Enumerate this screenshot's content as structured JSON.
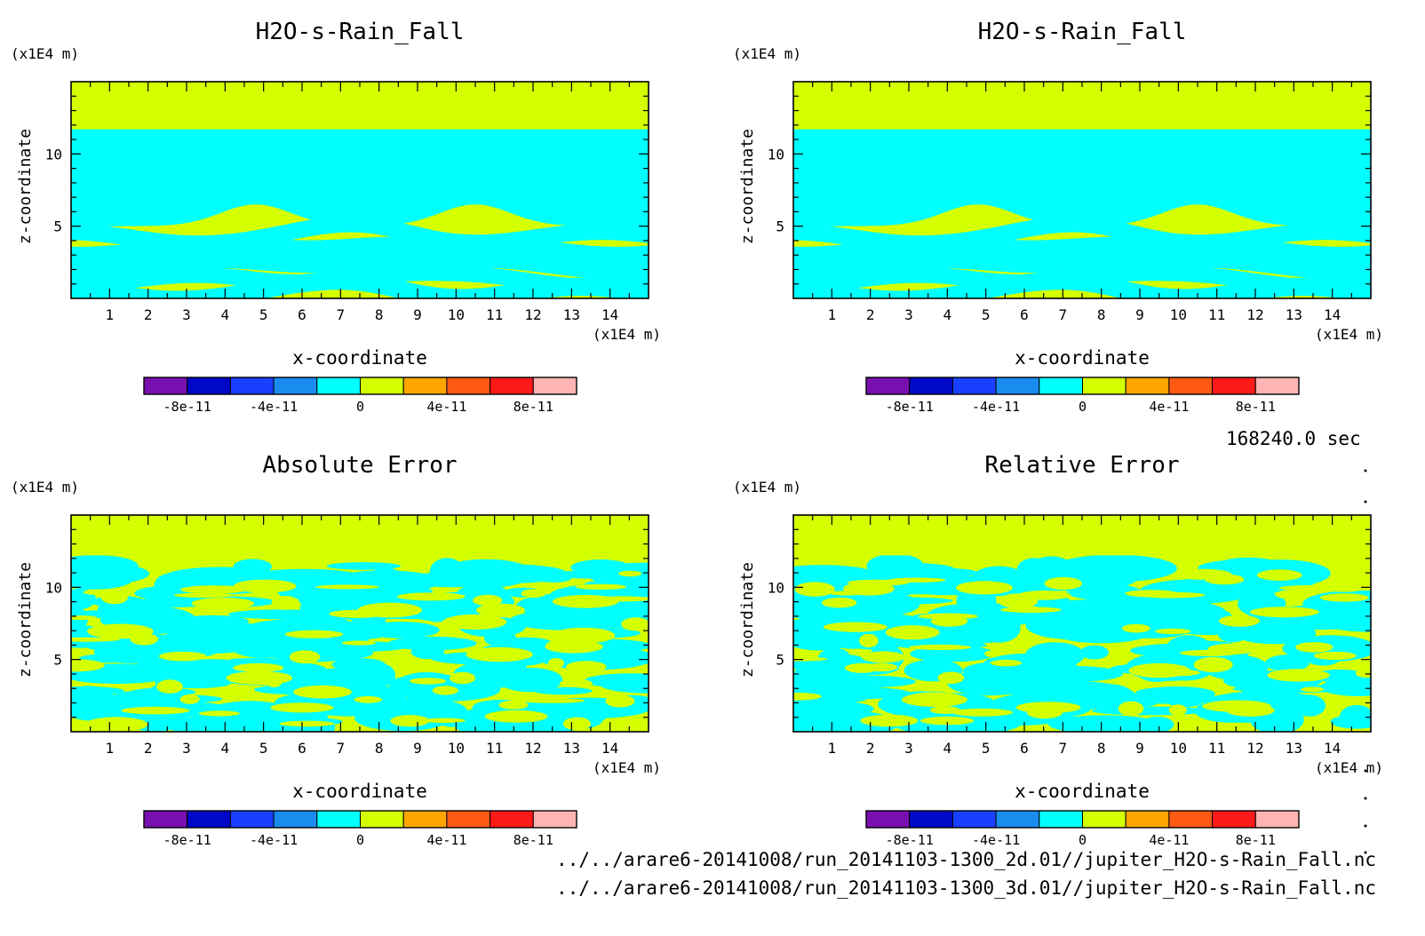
{
  "figure": {
    "time_label": "168240.0 sec",
    "file_paths": [
      "../../arare6-20141008/run_20141103-1300_2d.01//jupiter_H2O-s-Rain_Fall.nc",
      "../../arare6-20141008/run_20141103-1300_3d.01//jupiter_H2O-s-Rain_Fall.nc"
    ],
    "colors": {
      "levels": [
        "#7a0fb0",
        "#0008c8",
        "#1a40ff",
        "#1a8cf0",
        "#00ffff",
        "#d4ff00",
        "#ffa500",
        "#ff5a14",
        "#ff1a1a",
        "#ffb4b4"
      ],
      "positive_small": "#d4ff00",
      "zero_band": "#00ffff"
    }
  },
  "chart_data": [
    {
      "type": "heatmap",
      "title": "H2O-s-Rain_Fall",
      "xlabel": "x-coordinate",
      "ylabel": "z-coordinate",
      "x_unit_label": "(x1E4 m)",
      "y_unit_label": "(x1E4 m)",
      "xlim": [
        0,
        15
      ],
      "ylim": [
        0,
        15
      ],
      "x_ticks": [
        "1",
        "2",
        "3",
        "4",
        "5",
        "6",
        "7",
        "8",
        "9",
        "10",
        "11",
        "12",
        "13",
        "14"
      ],
      "y_ticks": [
        "5",
        "10"
      ],
      "colorbar_ticks": [
        "-8e-11",
        "-4e-11",
        "0",
        "4e-11",
        "8e-11"
      ],
      "colorbar_range": [
        -1e-10,
        1e-10
      ],
      "field_pattern": "structured",
      "seed": 11
    },
    {
      "type": "heatmap",
      "title": "H2O-s-Rain_Fall",
      "xlabel": "x-coordinate",
      "ylabel": "z-coordinate",
      "x_unit_label": "(x1E4 m)",
      "y_unit_label": "(x1E4 m)",
      "xlim": [
        0,
        15
      ],
      "ylim": [
        0,
        15
      ],
      "x_ticks": [
        "1",
        "2",
        "3",
        "4",
        "5",
        "6",
        "7",
        "8",
        "9",
        "10",
        "11",
        "12",
        "13",
        "14"
      ],
      "y_ticks": [
        "5",
        "10"
      ],
      "colorbar_ticks": [
        "-8e-11",
        "-4e-11",
        "0",
        "4e-11",
        "8e-11"
      ],
      "colorbar_range": [
        -1e-10,
        1e-10
      ],
      "field_pattern": "structured",
      "seed": 11
    },
    {
      "type": "heatmap",
      "title": "Absolute Error",
      "xlabel": "x-coordinate",
      "ylabel": "z-coordinate",
      "x_unit_label": "(x1E4 m)",
      "y_unit_label": "(x1E4 m)",
      "xlim": [
        0,
        15
      ],
      "ylim": [
        0,
        15
      ],
      "x_ticks": [
        "1",
        "2",
        "3",
        "4",
        "5",
        "6",
        "7",
        "8",
        "9",
        "10",
        "11",
        "12",
        "13",
        "14"
      ],
      "y_ticks": [
        "5",
        "10"
      ],
      "colorbar_ticks": [
        "-8e-11",
        "-4e-11",
        "0",
        "4e-11",
        "8e-11"
      ],
      "colorbar_range": [
        -1e-10,
        1e-10
      ],
      "field_pattern": "noisy",
      "seed": 23
    },
    {
      "type": "heatmap",
      "title": "Relative Error",
      "xlabel": "x-coordinate",
      "ylabel": "z-coordinate",
      "x_unit_label": "(x1E4 m)",
      "y_unit_label": "(x1E4 m)",
      "xlim": [
        0,
        15
      ],
      "ylim": [
        0,
        15
      ],
      "x_ticks": [
        "1",
        "2",
        "3",
        "4",
        "5",
        "6",
        "7",
        "8",
        "9",
        "10",
        "11",
        "12",
        "13",
        "14"
      ],
      "y_ticks": [
        "5",
        "10"
      ],
      "colorbar_ticks": [
        "-8e-11",
        "-4e-11",
        "0",
        "4e-11",
        "8e-11"
      ],
      "colorbar_range": [
        -1e-10,
        1e-10
      ],
      "field_pattern": "noisy",
      "seed": 37
    }
  ]
}
